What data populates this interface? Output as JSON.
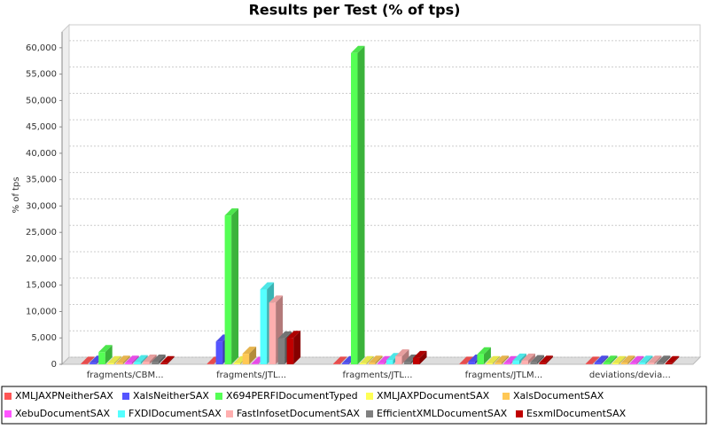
{
  "chart_data": {
    "type": "bar3d",
    "title": "Results per Test (% of tps)",
    "y_label": "% of tps",
    "categories": [
      "fragments/CBM...",
      "fragments/JTL...",
      "fragments/JTL...",
      "fragments/JTLM...",
      "deviations/devia..."
    ],
    "series": [
      {
        "name": "XMLJAXPNeitherSAX",
        "color": "#ff5555",
        "values": [
          100,
          100,
          100,
          100,
          100
        ]
      },
      {
        "name": "XalsNeitherSAX",
        "color": "#5555ff",
        "values": [
          300,
          4300,
          200,
          500,
          300
        ]
      },
      {
        "name": "X694PERFIDocumentTyped",
        "color": "#55ff55",
        "values": [
          2300,
          28200,
          59000,
          1900,
          300
        ]
      },
      {
        "name": "XMLJAXPDocumentSAX",
        "color": "#ffff55",
        "values": [
          200,
          200,
          200,
          200,
          200
        ]
      },
      {
        "name": "XalsDocumentSAX",
        "color": "#ffc855",
        "values": [
          300,
          2000,
          300,
          300,
          300
        ]
      },
      {
        "name": "XebuDocumentSAX",
        "color": "#ff55ff",
        "values": [
          300,
          100,
          200,
          200,
          200
        ]
      },
      {
        "name": "FXDIDocumentSAX",
        "color": "#55ffff",
        "values": [
          400,
          14200,
          800,
          700,
          300
        ]
      },
      {
        "name": "FastInfosetDocumentSAX",
        "color": "#ffafaf",
        "values": [
          500,
          11700,
          1500,
          700,
          300
        ]
      },
      {
        "name": "EfficientXMLDocumentSAX",
        "color": "#808080",
        "values": [
          500,
          4900,
          500,
          400,
          300
        ]
      },
      {
        "name": "EsxmlDocumentSAX",
        "color": "#c00000",
        "values": [
          200,
          5000,
          1200,
          300,
          200
        ]
      }
    ],
    "ylim": [
      0,
      63000
    ],
    "yticks": [
      0,
      {
        "value": 5000,
        "label": "5,000"
      },
      {
        "value": 10000,
        "label": "10,000"
      },
      {
        "value": 15000,
        "label": "15,000"
      },
      {
        "value": 20000,
        "label": "20,000"
      },
      {
        "value": 25000,
        "label": "25,000"
      },
      {
        "value": 30000,
        "label": "30,000"
      },
      {
        "value": 35000,
        "label": "35,000"
      },
      {
        "value": 40000,
        "label": "40,000"
      },
      {
        "value": 45000,
        "label": "45,000"
      },
      {
        "value": 50000,
        "label": "50,000"
      },
      {
        "value": 55000,
        "label": "55,000"
      },
      {
        "value": 60000,
        "label": "60,000"
      }
    ],
    "grid": true
  }
}
